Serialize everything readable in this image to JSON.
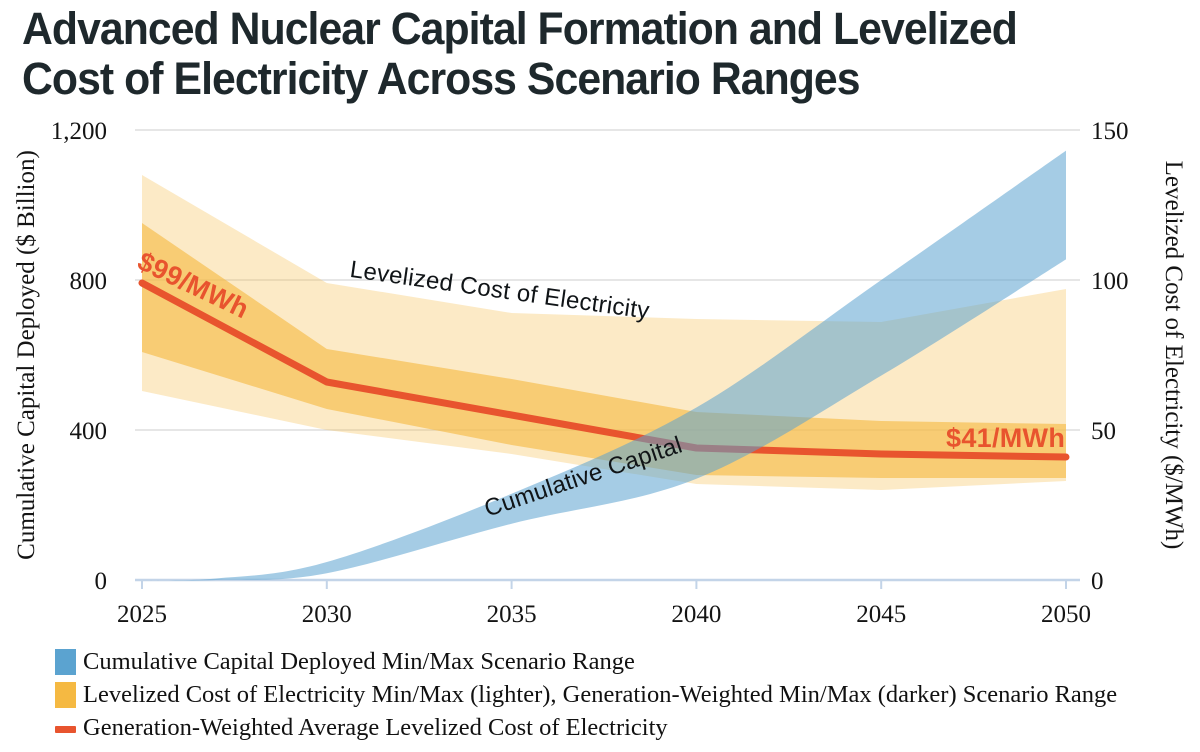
{
  "title": "Advanced Nuclear Capital Formation and Levelized\nCost of Electricity Across Scenario Ranges",
  "colors": {
    "blue": "#5BA3D0",
    "orange": "#F5B942",
    "red": "#E8542E",
    "gridline": "#D8D8D8",
    "axis_line": "#C3D4E8",
    "title_text": "#1E282C"
  },
  "chart_data": {
    "type": "area",
    "title": "Advanced Nuclear Capital Formation and Levelized Cost of Electricity Across Scenario Ranges",
    "grid": "horizontal-only",
    "x_ticks": [
      "2025",
      "2030",
      "2035",
      "2040",
      "2045",
      "2050"
    ],
    "x_tick_values": [
      2025,
      2030,
      2035,
      2040,
      2045,
      2050
    ],
    "left_axis": {
      "title": "Cumulative Capital Deployed ($ Billion)",
      "ticks": [
        "1,200",
        "800",
        "400",
        "0"
      ],
      "tick_values": [
        1200,
        800,
        400,
        0
      ],
      "range": [
        0,
        1200
      ]
    },
    "right_axis": {
      "title": "Levelized Cost of Electricity ($/MWh)",
      "ticks": [
        "150",
        "100",
        "50",
        "0"
      ],
      "tick_values": [
        150,
        100,
        50,
        0
      ],
      "range": [
        0,
        150
      ]
    },
    "series": [
      {
        "id": "band-lcoe-light",
        "name": "Levelized Cost of Electricity Min/Max (lighter) Scenario Range",
        "kind": "band",
        "axis": "right",
        "smooth": false,
        "x": [
          2025,
          2030,
          2035,
          2040,
          2045,
          2050
        ],
        "min": [
          63,
          50,
          42,
          32,
          30,
          33
        ],
        "max": [
          135,
          99,
          89,
          87,
          86,
          97
        ],
        "color": "#F5B942",
        "opacity": 0.3
      },
      {
        "id": "band-lcoe-dark",
        "name": "Generation-Weighted Min/Max (darker) Scenario Range",
        "kind": "band",
        "axis": "right",
        "smooth": false,
        "x": [
          2025,
          2030,
          2035,
          2040,
          2045,
          2050
        ],
        "min": [
          76,
          57,
          45,
          35,
          34,
          34
        ],
        "max": [
          119,
          77,
          67,
          56,
          53,
          52
        ],
        "color": "#F5B942",
        "opacity": 0.62
      },
      {
        "id": "line-lcoe-average",
        "name": "Generation-Weighted Average Levelized Cost of Electricity",
        "kind": "line",
        "axis": "right",
        "smooth": false,
        "x": [
          2025,
          2030,
          2035,
          2040,
          2045,
          2050
        ],
        "values": [
          99,
          66,
          55,
          44,
          42,
          41
        ],
        "color": "#E8542E",
        "width": 7
      },
      {
        "id": "band-cumulative-capital",
        "name": "Cumulative Capital Deployed Min/Max Scenario Range",
        "kind": "band",
        "axis": "left",
        "smooth": true,
        "x": [
          2025,
          2027,
          2030,
          2035,
          2040,
          2045,
          2050
        ],
        "min": [
          0,
          0,
          18,
          150,
          270,
          545,
          855
        ],
        "max": [
          0,
          4,
          48,
          230,
          460,
          800,
          1145
        ],
        "color": "#5BA3D0",
        "opacity": 0.55
      }
    ],
    "annotations": [
      {
        "text": "$99/MWh",
        "year": 2025,
        "value_mwh": 99
      },
      {
        "text": "$41/MWh",
        "year": 2050,
        "value_mwh": 41
      }
    ]
  },
  "inchart_labels": {
    "lcoe": "Levelized Cost of Electricity",
    "cumulative_capital": "Cumulative Capital",
    "start_price": "$99/MWh",
    "end_price": "$41/MWh"
  },
  "legend": {
    "items": [
      {
        "swatch": "square",
        "color": "#5BA3D0",
        "label": "Cumulative Capital Deployed Min/Max Scenario Range"
      },
      {
        "swatch": "square",
        "color": "#F5B942",
        "label": "Levelized Cost of Electricity Min/Max (lighter), Generation-Weighted Min/Max (darker) Scenario Range"
      },
      {
        "swatch": "line",
        "color": "#E8542E",
        "label": "Generation-Weighted Average Levelized Cost of Electricity"
      }
    ]
  }
}
